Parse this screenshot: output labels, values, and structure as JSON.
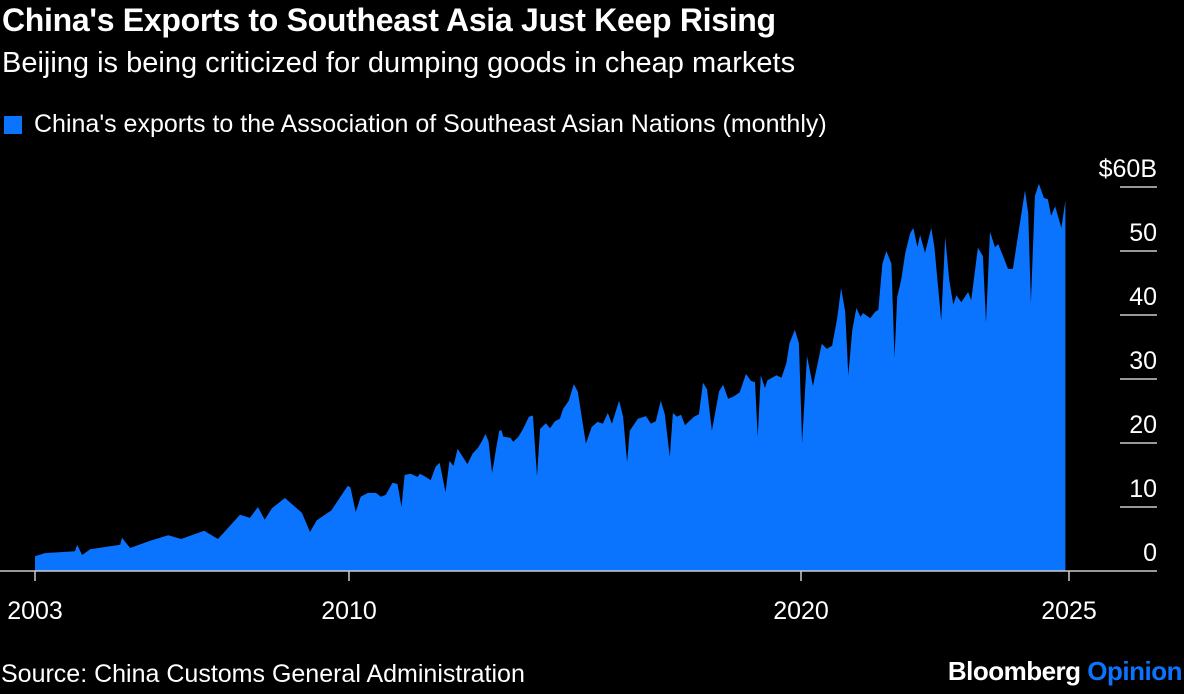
{
  "title": "China's Exports to Southeast Asia Just Keep Rising",
  "subtitle": "Beijing is being criticized for dumping goods in cheap markets",
  "source": "Source: China Customs General Administration",
  "logo": {
    "brand": "Bloomberg",
    "section": "Opinion"
  },
  "colors": {
    "series": "#0a74ff",
    "background": "#000000",
    "text": "#ffffff",
    "grid": "#cccccc"
  },
  "chart_data": {
    "type": "area",
    "title": "China's Exports to Southeast Asia Just Keep Rising",
    "subtitle": "Beijing is being criticized for dumping goods in cheap markets",
    "xlabel": "",
    "ylabel": "",
    "xlim": [
      2003,
      2026.95
    ],
    "ylim": [
      0,
      60
    ],
    "grid": true,
    "legend_position": "top-left",
    "y_axis_side": "right",
    "y_ticks": [
      0,
      10,
      20,
      30,
      40,
      50,
      60
    ],
    "y_tick_labels": [
      "0",
      "10",
      "20",
      "30",
      "40",
      "50",
      "$60B"
    ],
    "x_ticks": [
      2003,
      2010,
      2020,
      2025
    ],
    "x_tick_labels": [
      "2003",
      "2010",
      "2020",
      "2025"
    ],
    "series": [
      {
        "name": "China's exports to the Association of Southeast Asian Nations (monthly)",
        "points": [
          [
            2003.0,
            2.3
          ],
          [
            2003.22,
            2.8
          ],
          [
            2003.89,
            3.1
          ],
          [
            2003.94,
            4.1
          ],
          [
            2004.05,
            2.5
          ],
          [
            2004.23,
            3.4
          ],
          [
            2004.9,
            4.1
          ],
          [
            2004.94,
            5.2
          ],
          [
            2005.12,
            3.6
          ],
          [
            2005.56,
            4.7
          ],
          [
            2005.97,
            5.6
          ],
          [
            2006.26,
            5.0
          ],
          [
            2006.77,
            6.3
          ],
          [
            2007.08,
            5.0
          ],
          [
            2007.57,
            8.8
          ],
          [
            2007.79,
            8.3
          ],
          [
            2007.97,
            10.0
          ],
          [
            2008.12,
            8.0
          ],
          [
            2008.28,
            9.8
          ],
          [
            2008.57,
            11.4
          ],
          [
            2008.95,
            9.1
          ],
          [
            2009.13,
            6.1
          ],
          [
            2009.28,
            7.9
          ],
          [
            2009.61,
            9.5
          ],
          [
            2009.97,
            13.3
          ],
          [
            2010.03,
            13.1
          ],
          [
            2010.15,
            9.2
          ],
          [
            2010.26,
            11.6
          ],
          [
            2010.42,
            12.2
          ],
          [
            2010.6,
            12.2
          ],
          [
            2010.71,
            11.6
          ],
          [
            2010.82,
            11.9
          ],
          [
            2010.97,
            13.8
          ],
          [
            2011.08,
            13.6
          ],
          [
            2011.17,
            10.0
          ],
          [
            2011.24,
            15.0
          ],
          [
            2011.37,
            15.2
          ],
          [
            2011.53,
            14.7
          ],
          [
            2011.58,
            15.2
          ],
          [
            2011.71,
            14.7
          ],
          [
            2011.82,
            14.2
          ],
          [
            2011.93,
            16.3
          ],
          [
            2012.02,
            16.9
          ],
          [
            2012.15,
            12.3
          ],
          [
            2012.24,
            17.2
          ],
          [
            2012.33,
            16.4
          ],
          [
            2012.42,
            19.1
          ],
          [
            2012.64,
            16.7
          ],
          [
            2012.76,
            18.4
          ],
          [
            2012.87,
            19.2
          ],
          [
            2012.98,
            20.5
          ],
          [
            2013.04,
            21.4
          ],
          [
            2013.11,
            20.3
          ],
          [
            2013.19,
            15.3
          ],
          [
            2013.28,
            19.2
          ],
          [
            2013.35,
            21.9
          ],
          [
            2013.4,
            22.0
          ],
          [
            2013.44,
            21.0
          ],
          [
            2013.6,
            20.8
          ],
          [
            2013.66,
            20.2
          ],
          [
            2013.77,
            20.9
          ],
          [
            2013.88,
            22.2
          ],
          [
            2014.01,
            24.1
          ],
          [
            2014.1,
            24.3
          ],
          [
            2014.19,
            14.8
          ],
          [
            2014.26,
            22.2
          ],
          [
            2014.39,
            23.1
          ],
          [
            2014.48,
            22.3
          ],
          [
            2014.59,
            23.4
          ],
          [
            2014.7,
            23.8
          ],
          [
            2014.77,
            25.3
          ],
          [
            2014.9,
            26.6
          ],
          [
            2015.01,
            29.2
          ],
          [
            2015.1,
            28.0
          ],
          [
            2015.28,
            19.9
          ],
          [
            2015.41,
            22.5
          ],
          [
            2015.54,
            23.3
          ],
          [
            2015.66,
            23.0
          ],
          [
            2015.77,
            24.7
          ],
          [
            2015.86,
            23.0
          ],
          [
            2016.02,
            26.6
          ],
          [
            2016.11,
            24.1
          ],
          [
            2016.2,
            17.0
          ],
          [
            2016.26,
            21.9
          ],
          [
            2016.44,
            23.8
          ],
          [
            2016.62,
            24.2
          ],
          [
            2016.73,
            23.0
          ],
          [
            2016.84,
            23.4
          ],
          [
            2016.95,
            26.6
          ],
          [
            2017.04,
            24.5
          ],
          [
            2017.15,
            17.8
          ],
          [
            2017.22,
            24.7
          ],
          [
            2017.31,
            24.1
          ],
          [
            2017.4,
            24.4
          ],
          [
            2017.49,
            22.8
          ],
          [
            2017.69,
            24.1
          ],
          [
            2017.8,
            24.5
          ],
          [
            2017.89,
            29.4
          ],
          [
            2017.98,
            28.4
          ],
          [
            2018.09,
            21.9
          ],
          [
            2018.25,
            28.1
          ],
          [
            2018.34,
            29.1
          ],
          [
            2018.45,
            26.9
          ],
          [
            2018.56,
            27.2
          ],
          [
            2018.71,
            27.9
          ],
          [
            2018.85,
            30.8
          ],
          [
            2018.96,
            29.7
          ],
          [
            2019.05,
            29.5
          ],
          [
            2019.11,
            20.9
          ],
          [
            2019.18,
            30.6
          ],
          [
            2019.27,
            28.6
          ],
          [
            2019.33,
            29.8
          ],
          [
            2019.53,
            30.6
          ],
          [
            2019.64,
            30.2
          ],
          [
            2019.75,
            32.5
          ],
          [
            2019.82,
            35.6
          ],
          [
            2019.94,
            37.7
          ],
          [
            2020.03,
            35.6
          ],
          [
            2020.1,
            20.0
          ],
          [
            2020.21,
            33.6
          ],
          [
            2020.34,
            28.9
          ],
          [
            2020.54,
            35.5
          ],
          [
            2020.65,
            34.7
          ],
          [
            2020.77,
            35.2
          ],
          [
            2020.88,
            39.4
          ],
          [
            2020.97,
            44.2
          ],
          [
            2021.06,
            40.5
          ],
          [
            2021.13,
            30.5
          ],
          [
            2021.22,
            37.7
          ],
          [
            2021.31,
            41.1
          ],
          [
            2021.4,
            39.7
          ],
          [
            2021.46,
            40.3
          ],
          [
            2021.62,
            39.5
          ],
          [
            2021.73,
            40.5
          ],
          [
            2021.8,
            40.8
          ],
          [
            2021.89,
            48.0
          ],
          [
            2021.98,
            50.0
          ],
          [
            2022.09,
            48.0
          ],
          [
            2022.16,
            33.3
          ],
          [
            2022.22,
            42.8
          ],
          [
            2022.31,
            45.5
          ],
          [
            2022.4,
            49.7
          ],
          [
            2022.51,
            52.8
          ],
          [
            2022.58,
            53.6
          ],
          [
            2022.67,
            50.6
          ],
          [
            2022.73,
            52.5
          ],
          [
            2022.84,
            49.7
          ],
          [
            2022.98,
            53.6
          ],
          [
            2023.05,
            50.6
          ],
          [
            2023.2,
            39.1
          ],
          [
            2023.29,
            52.2
          ],
          [
            2023.38,
            45.5
          ],
          [
            2023.47,
            41.6
          ],
          [
            2023.54,
            43.1
          ],
          [
            2023.65,
            42.0
          ],
          [
            2023.8,
            43.6
          ],
          [
            2023.87,
            42.3
          ],
          [
            2024.02,
            50.5
          ],
          [
            2024.13,
            49.2
          ],
          [
            2024.2,
            38.8
          ],
          [
            2024.29,
            53.0
          ],
          [
            2024.4,
            50.6
          ],
          [
            2024.47,
            51.1
          ],
          [
            2024.58,
            49.2
          ],
          [
            2024.69,
            47.2
          ],
          [
            2024.8,
            47.2
          ],
          [
            2024.91,
            52.3
          ],
          [
            2025.07,
            59.5
          ],
          [
            2025.14,
            55.9
          ],
          [
            2025.2,
            41.9
          ],
          [
            2025.29,
            58.6
          ],
          [
            2025.38,
            60.5
          ],
          [
            2025.49,
            58.3
          ],
          [
            2025.58,
            58.1
          ],
          [
            2025.65,
            55.5
          ],
          [
            2025.74,
            57.0
          ],
          [
            2025.88,
            53.6
          ],
          [
            2025.97,
            57.9
          ]
        ]
      }
    ]
  }
}
